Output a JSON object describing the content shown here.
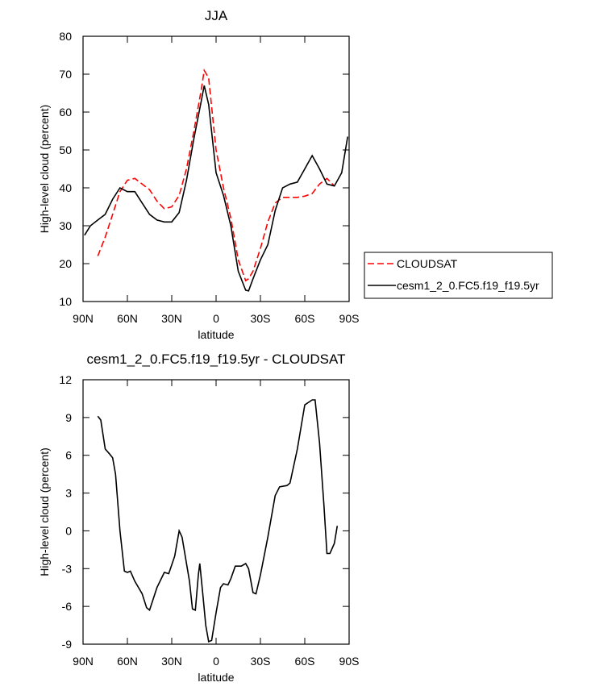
{
  "chart_data": [
    {
      "type": "line",
      "title": "JJA",
      "x_label": "latitude",
      "y_label": "High-level cloud (percent)",
      "xlim": [
        90,
        -90
      ],
      "xticks": [
        {
          "value": 90,
          "label": "90N"
        },
        {
          "value": 60,
          "label": "60N"
        },
        {
          "value": 30,
          "label": "30N"
        },
        0,
        {
          "value": -30,
          "label": "30S"
        },
        {
          "value": -60,
          "label": "60S"
        },
        {
          "value": -90,
          "label": "90S"
        }
      ],
      "ylim": [
        10,
        80
      ],
      "yticks": [
        10,
        20,
        30,
        40,
        50,
        60,
        70,
        80
      ],
      "legend": "right",
      "x": [
        89,
        85,
        80,
        75,
        70,
        65,
        60,
        55,
        50,
        45,
        40,
        35,
        30,
        25,
        20,
        15,
        10,
        8,
        5,
        0,
        -5,
        -10,
        -15,
        -20,
        -22,
        -25,
        -30,
        -35,
        -40,
        -45,
        -50,
        -55,
        -60,
        -65,
        -70,
        -75,
        -80,
        -85,
        -89
      ],
      "series": [
        {
          "name": "CLOUDSAT",
          "color": "#ff0000",
          "line_style": "dashed",
          "values": [
            null,
            null,
            22,
            27,
            33,
            39,
            42,
            42.5,
            41,
            39.5,
            36.5,
            34.5,
            35,
            38,
            45,
            55,
            66,
            71,
            69,
            50,
            40,
            32,
            21,
            15.5,
            16,
            18,
            24,
            31,
            36,
            37.5,
            37.5,
            37.5,
            37.8,
            38.5,
            41,
            42.5,
            40.5,
            null,
            null
          ]
        },
        {
          "name": "cesm1_2_0.FC5.f19_f19.5yr",
          "color": "#000000",
          "line_style": "solid",
          "values": [
            27.5,
            30,
            31.5,
            33,
            37,
            40,
            39,
            39,
            36,
            33,
            31.5,
            31,
            31,
            33.5,
            42,
            53,
            63,
            67,
            62,
            44,
            38,
            30,
            18,
            13,
            12.8,
            16,
            21,
            25,
            34,
            40,
            41,
            41.5,
            45,
            48.5,
            45,
            41,
            40.5,
            44,
            53.5
          ]
        }
      ]
    },
    {
      "type": "line",
      "title": "cesm1_2_0.FC5.f19_f19.5yr - CLOUDSAT",
      "x_label": "latitude",
      "y_label": "High-level cloud (percent)",
      "xlim": [
        90,
        -90
      ],
      "xticks": [
        {
          "value": 90,
          "label": "90N"
        },
        {
          "value": 60,
          "label": "60N"
        },
        {
          "value": 30,
          "label": "30N"
        },
        0,
        {
          "value": -30,
          "label": "30S"
        },
        {
          "value": -60,
          "label": "60S"
        },
        {
          "value": -90,
          "label": "90S"
        }
      ],
      "ylim": [
        -9,
        12
      ],
      "yticks": [
        -9,
        -6,
        -3,
        0,
        3,
        6,
        9,
        12
      ],
      "x": [
        80,
        78,
        75,
        72,
        70,
        68,
        65,
        62,
        60,
        58,
        55,
        50,
        47,
        45,
        40,
        35,
        32,
        28,
        25,
        23,
        18,
        16,
        14,
        12,
        11,
        9,
        7,
        5,
        3,
        0,
        -3,
        -5,
        -8,
        -10,
        -13,
        -17,
        -20,
        -22,
        -25,
        -27,
        -30,
        -35,
        -40,
        -43,
        -48,
        -50,
        -55,
        -60,
        -65,
        -67,
        -70,
        -73,
        -75,
        -77,
        -80,
        -82
      ],
      "series": [
        {
          "name": "cesm1_2_0.FC5.f19_f19.5yr - CLOUDSAT",
          "color": "#000000",
          "line_style": "solid",
          "values": [
            9.1,
            8.8,
            6.5,
            6.1,
            5.8,
            4.5,
            0,
            -3.2,
            -3.3,
            -3.2,
            -4,
            -5,
            -6.1,
            -6.3,
            -4.5,
            -3.3,
            -3.4,
            -2,
            0,
            -0.5,
            -4,
            -6.2,
            -6.3,
            -3.5,
            -2.6,
            -5,
            -7.5,
            -8.8,
            -8.7,
            -6.5,
            -4.5,
            -4.2,
            -4.3,
            -3.8,
            -2.8,
            -2.8,
            -2.6,
            -3,
            -4.9,
            -5,
            -3.5,
            -0.5,
            2.8,
            3.5,
            3.6,
            3.8,
            6.5,
            10,
            10.4,
            10.4,
            7,
            2,
            -1.8,
            -1.8,
            -1,
            0.4
          ]
        }
      ]
    }
  ]
}
